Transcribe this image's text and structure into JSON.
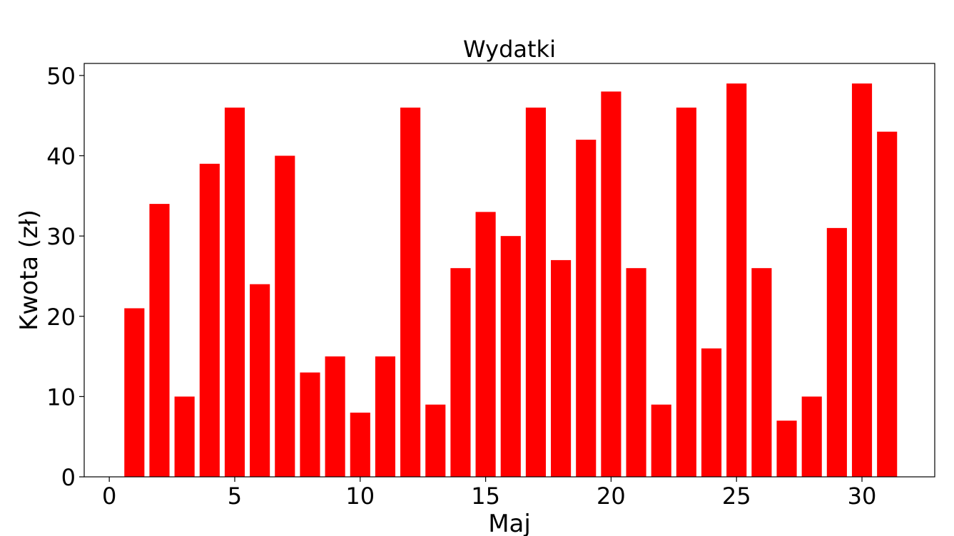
{
  "chart_data": {
    "type": "bar",
    "title": "Wydatki",
    "xlabel": "Maj",
    "ylabel": "Kwota (zł)",
    "bar_color": "#ff0000",
    "x": [
      1,
      2,
      3,
      4,
      5,
      6,
      7,
      8,
      9,
      10,
      11,
      12,
      13,
      14,
      15,
      16,
      17,
      18,
      19,
      20,
      21,
      22,
      23,
      24,
      25,
      26,
      27,
      28,
      29,
      30,
      31
    ],
    "values": [
      21,
      34,
      10,
      39,
      46,
      24,
      40,
      13,
      15,
      8,
      15,
      46,
      9,
      26,
      33,
      30,
      46,
      27,
      42,
      48,
      26,
      9,
      46,
      16,
      49,
      26,
      7,
      10,
      31,
      49,
      43
    ],
    "xlim": [
      -1,
      32.9
    ],
    "ylim": [
      0,
      51.5
    ],
    "xticks": [
      0,
      5,
      10,
      15,
      20,
      25,
      30
    ],
    "yticks": [
      0,
      10,
      20,
      30,
      40,
      50
    ],
    "grid": false,
    "legend": "none"
  }
}
